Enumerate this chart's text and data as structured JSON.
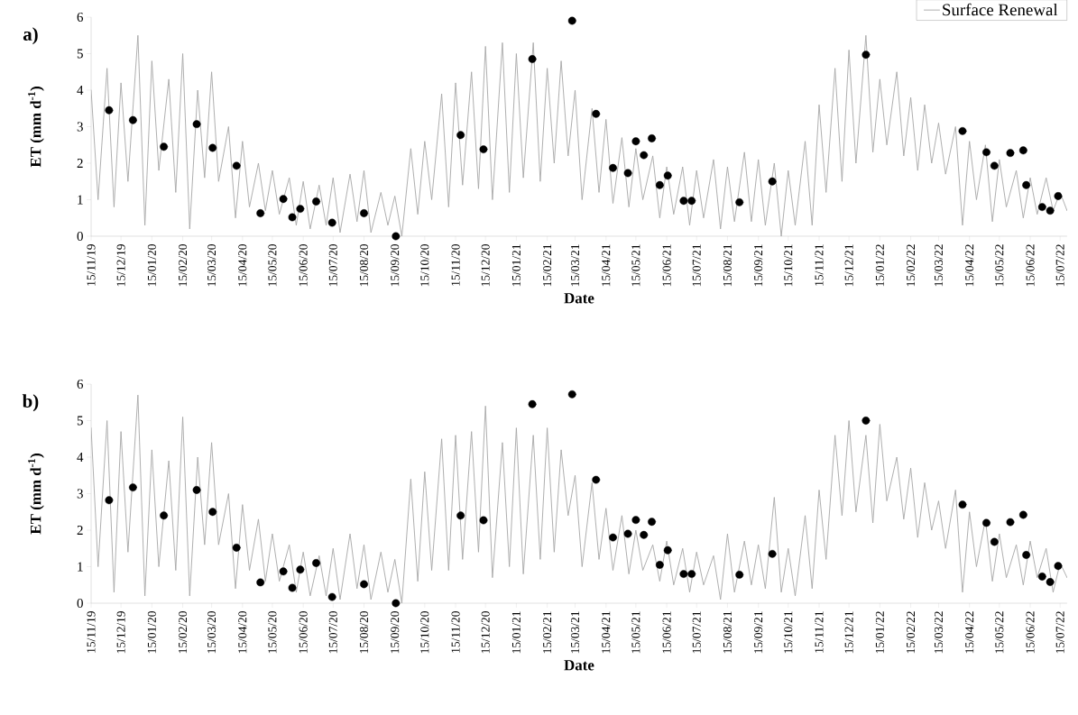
{
  "chart_data": [
    {
      "type": "line",
      "title": "a)",
      "xlabel": "Date",
      "ylabel": "ET (mm d$^{-1}$)",
      "legend": "top right",
      "xlim": [
        "2019-11-15",
        "2022-07-22"
      ],
      "ylim": [
        0,
        6
      ],
      "yticks": [
        0,
        1,
        2,
        3,
        4,
        5,
        6
      ],
      "xticks": [
        {
          "value": "2019-11-15",
          "label": "15/11/19"
        },
        {
          "value": "2019-12-15",
          "label": "15/12/19"
        },
        {
          "value": "2020-01-15",
          "label": "15/01/20"
        },
        {
          "value": "2020-02-15",
          "label": "15/02/20"
        },
        {
          "value": "2020-03-15",
          "label": "15/03/20"
        },
        {
          "value": "2020-04-15",
          "label": "15/04/20"
        },
        {
          "value": "2020-05-15",
          "label": "15/05/20"
        },
        {
          "value": "2020-06-15",
          "label": "15/06/20"
        },
        {
          "value": "2020-07-15",
          "label": "15/07/20"
        },
        {
          "value": "2020-08-15",
          "label": "15/08/20"
        },
        {
          "value": "2020-09-15",
          "label": "15/09/20"
        },
        {
          "value": "2020-10-15",
          "label": "15/10/20"
        },
        {
          "value": "2020-11-15",
          "label": "15/11/20"
        },
        {
          "value": "2020-12-15",
          "label": "15/12/20"
        },
        {
          "value": "2021-01-15",
          "label": "15/01/21"
        },
        {
          "value": "2021-02-15",
          "label": "15/02/21"
        },
        {
          "value": "2021-03-15",
          "label": "15/03/21"
        },
        {
          "value": "2021-04-15",
          "label": "15/04/21"
        },
        {
          "value": "2021-05-15",
          "label": "15/05/21"
        },
        {
          "value": "2021-06-15",
          "label": "15/06/21"
        },
        {
          "value": "2021-07-15",
          "label": "15/07/21"
        },
        {
          "value": "2021-08-15",
          "label": "15/08/21"
        },
        {
          "value": "2021-09-15",
          "label": "15/09/21"
        },
        {
          "value": "2021-10-15",
          "label": "15/10/21"
        },
        {
          "value": "2021-11-15",
          "label": "15/11/21"
        },
        {
          "value": "2021-12-15",
          "label": "15/12/21"
        },
        {
          "value": "2022-01-15",
          "label": "15/01/22"
        },
        {
          "value": "2022-02-15",
          "label": "15/02/22"
        },
        {
          "value": "2022-03-15",
          "label": "15/03/22"
        },
        {
          "value": "2022-04-15",
          "label": "15/04/22"
        },
        {
          "value": "2022-05-15",
          "label": "15/05/22"
        },
        {
          "value": "2022-06-15",
          "label": "15/06/22"
        },
        {
          "value": "2022-07-15",
          "label": "15/07/22"
        }
      ],
      "x": [
        "2019-11-15",
        "2019-11-22",
        "2019-12-01",
        "2019-12-08",
        "2019-12-15",
        "2019-12-22",
        "2020-01-01",
        "2020-01-08",
        "2020-01-15",
        "2020-01-22",
        "2020-02-01",
        "2020-02-08",
        "2020-02-15",
        "2020-02-22",
        "2020-03-01",
        "2020-03-08",
        "2020-03-15",
        "2020-03-22",
        "2020-04-01",
        "2020-04-08",
        "2020-04-15",
        "2020-04-22",
        "2020-05-01",
        "2020-05-08",
        "2020-05-15",
        "2020-05-22",
        "2020-06-01",
        "2020-06-08",
        "2020-06-15",
        "2020-06-22",
        "2020-07-01",
        "2020-07-08",
        "2020-07-15",
        "2020-07-22",
        "2020-08-01",
        "2020-08-08",
        "2020-08-15",
        "2020-08-22",
        "2020-09-01",
        "2020-09-08",
        "2020-09-15",
        "2020-09-22",
        "2020-10-01",
        "2020-10-08",
        "2020-10-15",
        "2020-10-22",
        "2020-11-01",
        "2020-11-08",
        "2020-11-15",
        "2020-11-22",
        "2020-12-01",
        "2020-12-08",
        "2020-12-15",
        "2020-12-22",
        "2021-01-01",
        "2021-01-08",
        "2021-01-15",
        "2021-01-22",
        "2021-02-01",
        "2021-02-08",
        "2021-02-15",
        "2021-02-22",
        "2021-03-01",
        "2021-03-08",
        "2021-03-15",
        "2021-03-22",
        "2021-04-01",
        "2021-04-08",
        "2021-04-15",
        "2021-04-22",
        "2021-05-01",
        "2021-05-08",
        "2021-05-15",
        "2021-05-22",
        "2021-06-01",
        "2021-06-08",
        "2021-06-15",
        "2021-06-22",
        "2021-07-01",
        "2021-07-08",
        "2021-07-15",
        "2021-07-22",
        "2021-08-01",
        "2021-08-08",
        "2021-08-15",
        "2021-08-22",
        "2021-09-01",
        "2021-09-08",
        "2021-09-15",
        "2021-09-22",
        "2021-10-01",
        "2021-10-08",
        "2021-10-15",
        "2021-10-22",
        "2021-11-01",
        "2021-11-08",
        "2021-11-15",
        "2021-11-22",
        "2021-12-01",
        "2021-12-08",
        "2021-12-15",
        "2021-12-22",
        "2022-01-01",
        "2022-01-08",
        "2022-01-15",
        "2022-01-22",
        "2022-02-01",
        "2022-02-08",
        "2022-02-15",
        "2022-02-22",
        "2022-03-01",
        "2022-03-08",
        "2022-03-15",
        "2022-03-22",
        "2022-04-01",
        "2022-04-08",
        "2022-04-15",
        "2022-04-22",
        "2022-05-01",
        "2022-05-08",
        "2022-05-15",
        "2022-05-22",
        "2022-06-01",
        "2022-06-08",
        "2022-06-15",
        "2022-06-22",
        "2022-07-01",
        "2022-07-08",
        "2022-07-15",
        "2022-07-22"
      ],
      "series": [
        {
          "name": "Surface Renewal",
          "color": "#a6a6a6",
          "marker": "none",
          "values": [
            4.0,
            1.0,
            4.6,
            0.8,
            4.2,
            1.5,
            5.5,
            0.3,
            4.8,
            1.8,
            4.3,
            1.2,
            5.0,
            0.2,
            4.0,
            1.6,
            4.5,
            1.5,
            3.0,
            0.5,
            2.6,
            0.8,
            2.0,
            0.7,
            1.8,
            0.6,
            1.6,
            0.3,
            1.5,
            0.2,
            1.4,
            0.3,
            1.6,
            0.1,
            1.7,
            0.4,
            1.8,
            0.1,
            1.2,
            0.3,
            1.1,
            0.0,
            2.4,
            0.6,
            2.6,
            1.0,
            3.9,
            0.8,
            4.2,
            1.4,
            4.5,
            1.3,
            5.2,
            1.0,
            5.3,
            1.2,
            5.0,
            1.6,
            5.3,
            1.5,
            4.6,
            2.0,
            4.8,
            2.2,
            4.0,
            1.0,
            3.5,
            1.2,
            3.2,
            0.9,
            2.7,
            0.8,
            2.4,
            1.0,
            2.2,
            0.5,
            1.9,
            0.6,
            1.9,
            0.3,
            1.8,
            0.5,
            2.1,
            0.2,
            1.9,
            0.4,
            2.3,
            0.4,
            2.1,
            0.3,
            2.0,
            0.0,
            1.8,
            0.3,
            2.6,
            0.3,
            3.6,
            1.2,
            4.6,
            1.5,
            5.1,
            2.0,
            5.5,
            2.3,
            4.3,
            2.5,
            4.5,
            2.2,
            3.8,
            1.8,
            3.6,
            2.0,
            3.1,
            1.7,
            3.0,
            0.3,
            2.6,
            1.0,
            2.5,
            0.4,
            2.1,
            0.8,
            1.8,
            0.5,
            1.6,
            0.6,
            1.6,
            0.7,
            1.2,
            0.7
          ]
        },
        {
          "type": "scatter",
          "color": "#000000",
          "marker": "circle",
          "x": [
            "2019-12-03",
            "2019-12-27",
            "2020-01-27",
            "2020-02-29",
            "2020-03-16",
            "2020-04-09",
            "2020-05-03",
            "2020-05-26",
            "2020-06-04",
            "2020-06-12",
            "2020-06-28",
            "2020-07-14",
            "2020-08-15",
            "2020-09-16",
            "2020-11-20",
            "2020-12-13",
            "2021-01-31",
            "2021-03-12",
            "2021-04-05",
            "2021-04-22",
            "2021-05-07",
            "2021-05-15",
            "2021-05-23",
            "2021-05-31",
            "2021-06-08",
            "2021-06-16",
            "2021-07-02",
            "2021-07-10",
            "2021-08-27",
            "2021-09-29",
            "2022-01-01",
            "2022-04-08",
            "2022-05-02",
            "2022-05-10",
            "2022-05-26",
            "2022-06-08",
            "2022-06-11",
            "2022-06-27",
            "2022-07-05",
            "2022-07-13"
          ],
          "values": [
            3.45,
            3.18,
            2.45,
            3.07,
            2.42,
            1.93,
            0.63,
            1.02,
            0.52,
            0.75,
            0.95,
            0.37,
            0.63,
            0.0,
            2.77,
            2.38,
            4.85,
            5.9,
            3.35,
            1.87,
            1.73,
            2.6,
            2.22,
            2.68,
            1.4,
            1.66,
            0.97,
            0.97,
            0.93,
            1.5,
            4.97,
            2.88,
            2.3,
            1.93,
            2.28,
            2.35,
            1.4,
            0.8,
            0.7,
            1.1
          ]
        }
      ]
    },
    {
      "type": "line",
      "title": "b)",
      "xlabel": "Date",
      "ylabel": "ET (mm d$^{-1}$)",
      "xlim": [
        "2019-11-15",
        "2022-07-22"
      ],
      "ylim": [
        0,
        6
      ],
      "yticks": [
        0,
        1,
        2,
        3,
        4,
        5,
        6
      ],
      "xticks": [
        {
          "value": "2019-11-15",
          "label": "15/11/19"
        },
        {
          "value": "2019-12-15",
          "label": "15/12/19"
        },
        {
          "value": "2020-01-15",
          "label": "15/01/20"
        },
        {
          "value": "2020-02-15",
          "label": "15/02/20"
        },
        {
          "value": "2020-03-15",
          "label": "15/03/20"
        },
        {
          "value": "2020-04-15",
          "label": "15/04/20"
        },
        {
          "value": "2020-05-15",
          "label": "15/05/20"
        },
        {
          "value": "2020-06-15",
          "label": "15/06/20"
        },
        {
          "value": "2020-07-15",
          "label": "15/07/20"
        },
        {
          "value": "2020-08-15",
          "label": "15/08/20"
        },
        {
          "value": "2020-09-15",
          "label": "15/09/20"
        },
        {
          "value": "2020-10-15",
          "label": "15/10/20"
        },
        {
          "value": "2020-11-15",
          "label": "15/11/20"
        },
        {
          "value": "2020-12-15",
          "label": "15/12/20"
        },
        {
          "value": "2021-01-15",
          "label": "15/01/21"
        },
        {
          "value": "2021-02-15",
          "label": "15/02/21"
        },
        {
          "value": "2021-03-15",
          "label": "15/03/21"
        },
        {
          "value": "2021-04-15",
          "label": "15/04/21"
        },
        {
          "value": "2021-05-15",
          "label": "15/05/21"
        },
        {
          "value": "2021-06-15",
          "label": "15/06/21"
        },
        {
          "value": "2021-07-15",
          "label": "15/07/21"
        },
        {
          "value": "2021-08-15",
          "label": "15/08/21"
        },
        {
          "value": "2021-09-15",
          "label": "15/09/21"
        },
        {
          "value": "2021-10-15",
          "label": "15/10/21"
        },
        {
          "value": "2021-11-15",
          "label": "15/11/21"
        },
        {
          "value": "2021-12-15",
          "label": "15/12/21"
        },
        {
          "value": "2022-01-15",
          "label": "15/01/22"
        },
        {
          "value": "2022-02-15",
          "label": "15/02/22"
        },
        {
          "value": "2022-03-15",
          "label": "15/03/22"
        },
        {
          "value": "2022-04-15",
          "label": "15/04/22"
        },
        {
          "value": "2022-05-15",
          "label": "15/05/22"
        },
        {
          "value": "2022-06-15",
          "label": "15/06/22"
        },
        {
          "value": "2022-07-15",
          "label": "15/07/22"
        }
      ],
      "x": [
        "2019-11-15",
        "2019-11-22",
        "2019-12-01",
        "2019-12-08",
        "2019-12-15",
        "2019-12-22",
        "2020-01-01",
        "2020-01-08",
        "2020-01-15",
        "2020-01-22",
        "2020-02-01",
        "2020-02-08",
        "2020-02-15",
        "2020-02-22",
        "2020-03-01",
        "2020-03-08",
        "2020-03-15",
        "2020-03-22",
        "2020-04-01",
        "2020-04-08",
        "2020-04-15",
        "2020-04-22",
        "2020-05-01",
        "2020-05-08",
        "2020-05-15",
        "2020-05-22",
        "2020-06-01",
        "2020-06-08",
        "2020-06-15",
        "2020-06-22",
        "2020-07-01",
        "2020-07-08",
        "2020-07-15",
        "2020-07-22",
        "2020-08-01",
        "2020-08-08",
        "2020-08-15",
        "2020-08-22",
        "2020-09-01",
        "2020-09-08",
        "2020-09-15",
        "2020-09-22",
        "2020-10-01",
        "2020-10-08",
        "2020-10-15",
        "2020-10-22",
        "2020-11-01",
        "2020-11-08",
        "2020-11-15",
        "2020-11-22",
        "2020-12-01",
        "2020-12-08",
        "2020-12-15",
        "2020-12-22",
        "2021-01-01",
        "2021-01-08",
        "2021-01-15",
        "2021-01-22",
        "2021-02-01",
        "2021-02-08",
        "2021-02-15",
        "2021-02-22",
        "2021-03-01",
        "2021-03-08",
        "2021-03-15",
        "2021-03-22",
        "2021-04-01",
        "2021-04-08",
        "2021-04-15",
        "2021-04-22",
        "2021-05-01",
        "2021-05-08",
        "2021-05-15",
        "2021-05-22",
        "2021-06-01",
        "2021-06-08",
        "2021-06-15",
        "2021-06-22",
        "2021-07-01",
        "2021-07-08",
        "2021-07-15",
        "2021-07-22",
        "2021-08-01",
        "2021-08-08",
        "2021-08-15",
        "2021-08-22",
        "2021-09-01",
        "2021-09-08",
        "2021-09-15",
        "2021-09-22",
        "2021-10-01",
        "2021-10-08",
        "2021-10-15",
        "2021-10-22",
        "2021-11-01",
        "2021-11-08",
        "2021-11-15",
        "2021-11-22",
        "2021-12-01",
        "2021-12-08",
        "2021-12-15",
        "2021-12-22",
        "2022-01-01",
        "2022-01-08",
        "2022-01-15",
        "2022-01-22",
        "2022-02-01",
        "2022-02-08",
        "2022-02-15",
        "2022-02-22",
        "2022-03-01",
        "2022-03-08",
        "2022-03-15",
        "2022-03-22",
        "2022-04-01",
        "2022-04-08",
        "2022-04-15",
        "2022-04-22",
        "2022-05-01",
        "2022-05-08",
        "2022-05-15",
        "2022-05-22",
        "2022-06-01",
        "2022-06-08",
        "2022-06-15",
        "2022-06-22",
        "2022-07-01",
        "2022-07-08",
        "2022-07-15",
        "2022-07-22"
      ],
      "series": [
        {
          "color": "#a6a6a6",
          "marker": "none",
          "values": [
            4.8,
            1.0,
            5.0,
            0.3,
            4.7,
            1.4,
            5.7,
            0.2,
            4.2,
            1.0,
            3.9,
            0.9,
            5.1,
            0.2,
            4.0,
            1.6,
            4.4,
            1.6,
            3.0,
            0.4,
            2.7,
            0.9,
            2.3,
            0.6,
            1.9,
            0.6,
            1.6,
            0.3,
            1.4,
            0.2,
            1.3,
            0.2,
            1.5,
            0.1,
            1.9,
            0.4,
            1.6,
            0.1,
            1.4,
            0.3,
            1.2,
            0.0,
            3.4,
            0.6,
            3.6,
            0.9,
            4.5,
            0.9,
            4.6,
            1.2,
            4.7,
            1.4,
            5.4,
            0.7,
            4.4,
            1.0,
            4.8,
            0.8,
            4.6,
            1.2,
            4.8,
            1.4,
            4.2,
            2.4,
            3.5,
            1.0,
            3.3,
            1.2,
            2.6,
            0.9,
            2.4,
            0.8,
            2.0,
            0.9,
            1.6,
            0.6,
            1.7,
            0.5,
            1.5,
            0.3,
            1.4,
            0.5,
            1.3,
            0.1,
            1.9,
            0.3,
            1.7,
            0.5,
            1.6,
            0.4,
            2.9,
            0.3,
            1.5,
            0.2,
            2.4,
            0.4,
            3.1,
            1.2,
            4.6,
            2.4,
            5.0,
            2.5,
            4.6,
            2.2,
            4.9,
            2.8,
            4.0,
            2.3,
            3.7,
            1.8,
            3.3,
            2.0,
            2.8,
            1.5,
            3.1,
            0.3,
            2.5,
            1.0,
            2.3,
            0.6,
            1.9,
            0.7,
            1.6,
            0.5,
            1.7,
            0.7,
            1.5,
            0.3,
            1.1,
            0.7
          ]
        },
        {
          "type": "scatter",
          "color": "#000000",
          "marker": "circle",
          "x": [
            "2019-12-03",
            "2019-12-27",
            "2020-01-27",
            "2020-02-29",
            "2020-03-16",
            "2020-04-09",
            "2020-05-03",
            "2020-05-26",
            "2020-06-04",
            "2020-06-12",
            "2020-06-28",
            "2020-07-14",
            "2020-08-15",
            "2020-09-16",
            "2020-11-20",
            "2020-12-13",
            "2021-01-31",
            "2021-03-12",
            "2021-04-05",
            "2021-04-22",
            "2021-05-07",
            "2021-05-15",
            "2021-05-23",
            "2021-05-31",
            "2021-06-08",
            "2021-06-16",
            "2021-07-02",
            "2021-07-10",
            "2021-08-27",
            "2021-09-29",
            "2022-01-01",
            "2022-04-08",
            "2022-05-02",
            "2022-05-10",
            "2022-05-26",
            "2022-06-08",
            "2022-06-11",
            "2022-06-27",
            "2022-07-05",
            "2022-07-13"
          ],
          "values": [
            2.82,
            3.17,
            2.4,
            3.1,
            2.5,
            1.52,
            0.57,
            0.87,
            0.42,
            0.92,
            1.1,
            0.17,
            0.52,
            0.0,
            2.4,
            2.27,
            5.45,
            5.72,
            3.38,
            1.8,
            1.9,
            2.28,
            1.87,
            2.23,
            1.05,
            1.45,
            0.8,
            0.8,
            0.78,
            1.35,
            5.0,
            2.7,
            2.2,
            1.68,
            2.22,
            2.42,
            1.32,
            0.73,
            0.58,
            1.02
          ]
        }
      ]
    }
  ]
}
